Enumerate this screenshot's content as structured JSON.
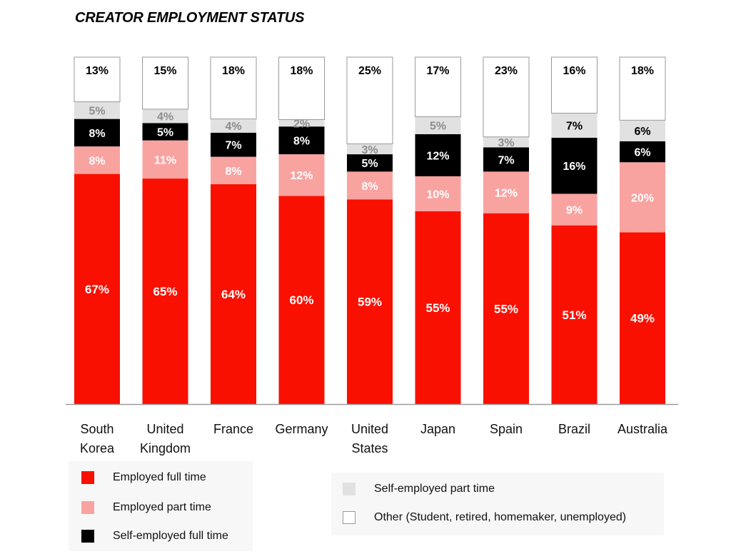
{
  "chart_data": {
    "type": "bar",
    "stacked": true,
    "normalized": true,
    "title": "CREATOR EMPLOYMENT STATUS",
    "categories": [
      "South Korea",
      "United Kingdom",
      "France",
      "Germany",
      "United States",
      "Japan",
      "Spain",
      "Brazil",
      "Australia"
    ],
    "category_lines": [
      [
        "South",
        "Korea"
      ],
      [
        "United",
        "Kingdom"
      ],
      [
        "France"
      ],
      [
        "Germany"
      ],
      [
        "United",
        "States"
      ],
      [
        "Japan"
      ],
      [
        "Spain"
      ],
      [
        "Brazil"
      ],
      [
        "Australia"
      ]
    ],
    "series": [
      {
        "name": "Employed full time",
        "color": "#fa1000",
        "label_color": "#ffffff",
        "values": [
          67,
          65,
          64,
          60,
          59,
          55,
          55,
          51,
          49
        ]
      },
      {
        "name": "Employed part time",
        "color": "#f9a3a0",
        "label_color": "#ffffff",
        "values": [
          8,
          11,
          8,
          12,
          8,
          10,
          12,
          9,
          20
        ]
      },
      {
        "name": "Self-employed full time",
        "color": "#000000",
        "label_color": "#ffffff",
        "values": [
          8,
          5,
          7,
          8,
          5,
          12,
          7,
          16,
          6
        ]
      },
      {
        "name": "Self-employed part time",
        "color": "#e1e1e1",
        "label_color": "#8c8c8c",
        "values": [
          5,
          4,
          4,
          2,
          3,
          5,
          3,
          7,
          6
        ]
      },
      {
        "name": "Other (Student, retired, homemaker, unemployed)",
        "color": "#ffffff",
        "label_color": "#000000",
        "values": [
          13,
          15,
          18,
          18,
          25,
          17,
          23,
          16,
          18
        ]
      }
    ],
    "value_labels": [
      [
        "67%",
        "8%",
        "8%",
        "5%",
        "13%"
      ],
      [
        "65%",
        "11%",
        "5%",
        "4%",
        "15%"
      ],
      [
        "64%",
        "8%",
        "7%",
        "4%",
        "18%"
      ],
      [
        "60%",
        "12%",
        "8%",
        "2%",
        "18%"
      ],
      [
        "59%",
        "8%",
        "5%",
        "3%",
        "25%"
      ],
      [
        "55%",
        "10%",
        "12%",
        "5%",
        "17%"
      ],
      [
        "55%",
        "12%",
        "7%",
        "3%",
        "23%"
      ],
      [
        "51%",
        "9%",
        "16%",
        "7%",
        "16%"
      ],
      [
        "49%",
        "20%",
        "6%",
        "6%",
        "18%"
      ]
    ],
    "special_label_colors": {
      "7-3": "#000000",
      "8-3": "#000000"
    },
    "ylim": [
      0,
      100
    ],
    "grid": false,
    "legend_position": "bottom"
  },
  "legend": {
    "left": [
      {
        "label": "Employed full time",
        "color": "#fa1000"
      },
      {
        "label": "Employed part time",
        "color": "#f9a3a0"
      },
      {
        "label": "Self-employed full time",
        "color": "#000000"
      }
    ],
    "right": [
      {
        "label": "Self-employed part time",
        "color": "#e1e1e1"
      },
      {
        "label": "Other (Student, retired, homemaker, unemployed)",
        "color": "#ffffff"
      }
    ]
  }
}
